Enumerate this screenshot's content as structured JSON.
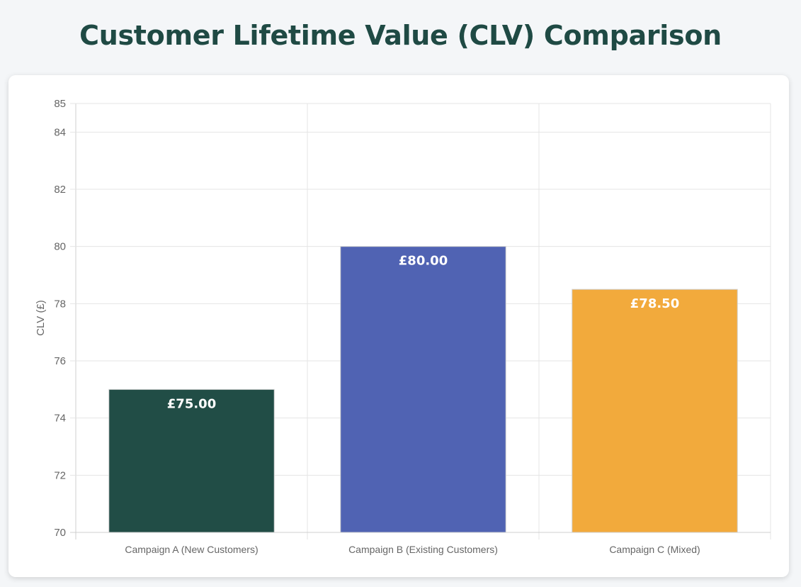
{
  "chart_data": {
    "type": "bar",
    "title": "Customer Lifetime Value (CLV) Comparison",
    "xlabel": "",
    "ylabel": "CLV (£)",
    "categories": [
      "Campaign A (New Customers)",
      "Campaign B (Existing Customers)",
      "Campaign C (Mixed)"
    ],
    "values": [
      75.0,
      80.0,
      78.5
    ],
    "data_labels": [
      "£75.00",
      "£80.00",
      "£78.50"
    ],
    "colors": [
      "#214d46",
      "#5063b3",
      "#f2aa3c"
    ],
    "ylim": [
      70,
      85
    ],
    "yticks": [
      70,
      72,
      74,
      76,
      78,
      80,
      82,
      84,
      85
    ],
    "grid": true,
    "legend": "none"
  }
}
